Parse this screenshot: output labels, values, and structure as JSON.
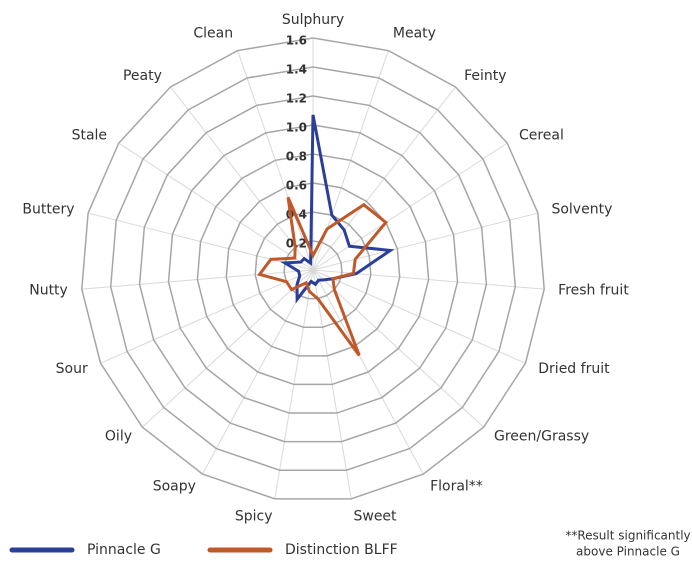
{
  "chart_data": {
    "type": "radar",
    "categories": [
      "Sulphury",
      "Meaty",
      "Feinty",
      "Cereal",
      "Solventy",
      "Fresh fruit",
      "Dried fruit",
      "Green/Grassy",
      "Floral**",
      "Sweet",
      "Spicy",
      "Soapy",
      "Oily",
      "Sour",
      "Nutty",
      "Buttery",
      "Stale",
      "Peaty",
      "Clean"
    ],
    "series": [
      {
        "name": "Pinnacle G",
        "color": "#2b3f99",
        "values": [
          1.07,
          0.4,
          0.35,
          0.3,
          0.55,
          0.3,
          0.15,
          0.1,
          0.08,
          0.1,
          0.08,
          0.23,
          0.15,
          0.1,
          0.1,
          0.2,
          0.1,
          0.1,
          0.05
        ]
      },
      {
        "name": "Distinction BLFF",
        "color": "#c0582a",
        "values": [
          0.1,
          0.3,
          0.57,
          0.6,
          0.3,
          0.28,
          0.15,
          0.2,
          0.67,
          0.2,
          0.15,
          0.1,
          0.2,
          0.2,
          0.37,
          0.3,
          0.15,
          0.2,
          0.53
        ]
      }
    ],
    "ylim": [
      0,
      1.6
    ],
    "yticks": [
      0.2,
      0.4,
      0.6,
      0.8,
      {
        "value": 1,
        "label": "1.0"
      },
      1.2,
      1.4,
      1.6
    ],
    "grid": true,
    "legend": "bottom",
    "annotation": [
      "**Result significantly",
      "above Pinnacle G"
    ]
  }
}
